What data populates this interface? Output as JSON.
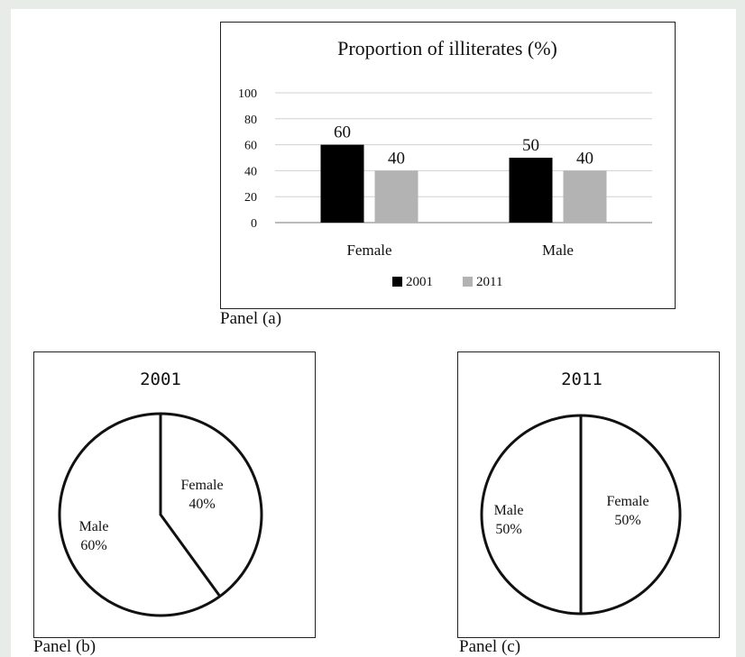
{
  "chart_data": [
    {
      "type": "bar",
      "panel": "Panel (a)",
      "title": "Proportion of illiterates (%)",
      "categories": [
        "Female",
        "Male"
      ],
      "series": [
        {
          "name": "2001",
          "values": [
            60,
            50
          ],
          "color": "#000000"
        },
        {
          "name": "2011",
          "values": [
            40,
            40
          ],
          "color": "#b3b3b3"
        }
      ],
      "yticks": [
        "0",
        "20",
        "40",
        "60",
        "80",
        "100"
      ],
      "ylim": [
        0,
        100
      ],
      "grid": true,
      "legend": "bottom"
    },
    {
      "type": "pie",
      "panel": "Panel (b)",
      "title": "2001",
      "slices": [
        {
          "label": "Female",
          "value": 40,
          "text": "40%"
        },
        {
          "label": "Male",
          "value": 60,
          "text": "60%"
        }
      ]
    },
    {
      "type": "pie",
      "panel": "Panel (c)",
      "title": "2011",
      "slices": [
        {
          "label": "Female",
          "value": 50,
          "text": "50%"
        },
        {
          "label": "Male",
          "value": 50,
          "text": "50%"
        }
      ]
    }
  ]
}
